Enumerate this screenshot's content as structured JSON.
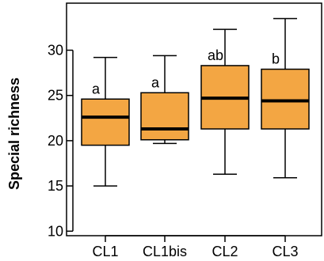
{
  "chart_data": {
    "type": "box",
    "title": "",
    "xlabel": "",
    "ylabel": "Special richness",
    "ylim": [
      9.5,
      35.2
    ],
    "yticks": [
      10,
      15,
      20,
      25,
      30
    ],
    "colors": {
      "box_fill": "#F3A643",
      "stroke": "#000000"
    },
    "categories": [
      "CL1",
      "CL1bis",
      "CL2",
      "CL3"
    ],
    "boxes": [
      {
        "category": "CL1",
        "whisker_low": 15.0,
        "q1": 19.5,
        "median": 22.6,
        "q3": 24.6,
        "whisker_high": 29.2,
        "letter": "a"
      },
      {
        "category": "CL1bis",
        "whisker_low": 19.7,
        "q1": 20.1,
        "median": 21.3,
        "q3": 25.3,
        "whisker_high": 29.4,
        "letter": "a"
      },
      {
        "category": "CL2",
        "whisker_low": 16.3,
        "q1": 21.3,
        "median": 24.7,
        "q3": 28.3,
        "whisker_high": 32.3,
        "letter": "ab"
      },
      {
        "category": "CL3",
        "whisker_low": 15.9,
        "q1": 21.3,
        "median": 24.4,
        "q3": 27.9,
        "whisker_high": 33.5,
        "letter": "b"
      }
    ]
  }
}
